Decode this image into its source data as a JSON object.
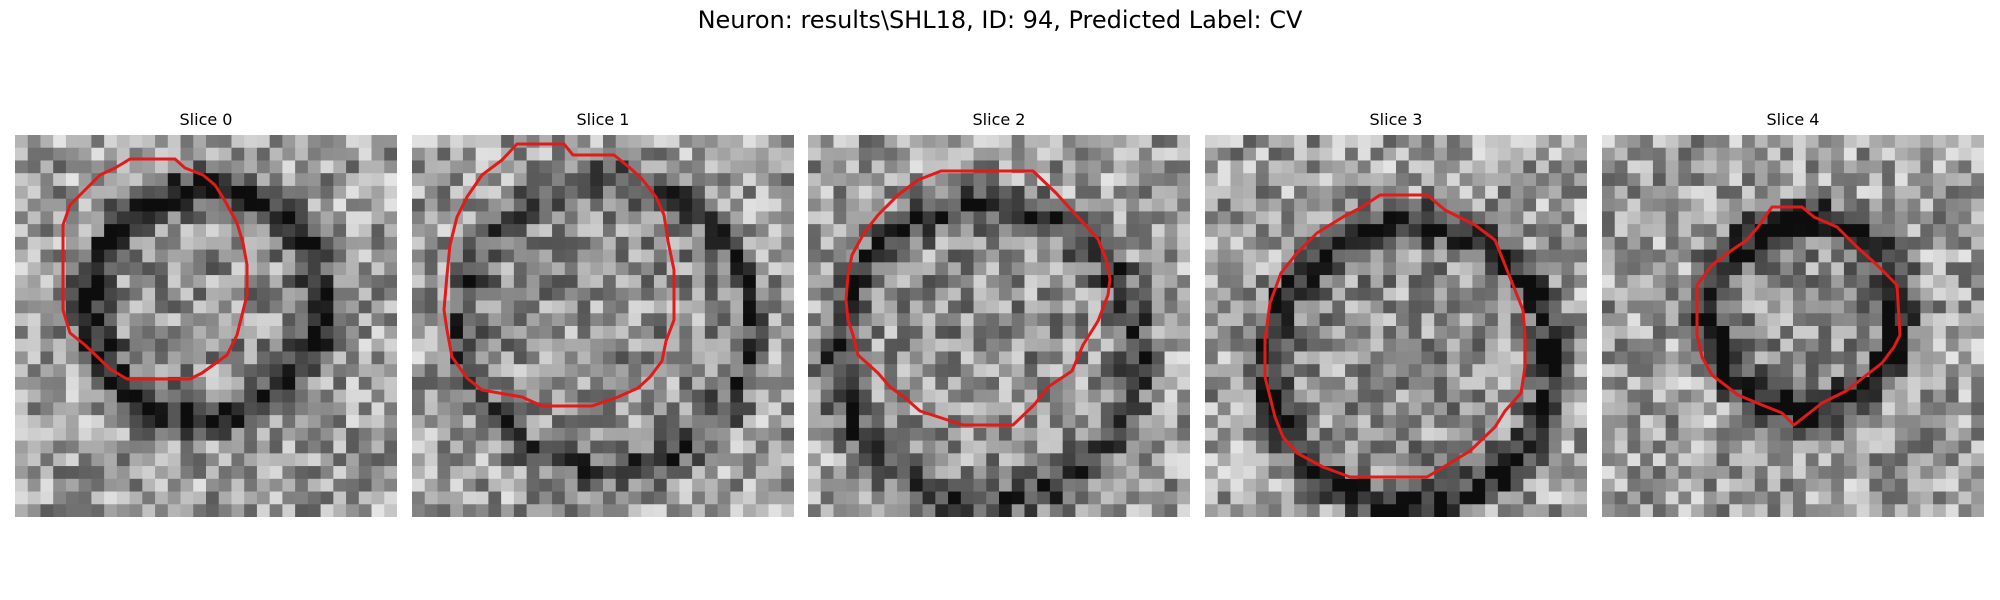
{
  "figure": {
    "title": "Neuron: results\\SHL18, ID: 94, Predicted Label: CV"
  },
  "style": {
    "contour_color": "#e11a1a",
    "colormap": "grayscale"
  },
  "panels": [
    {
      "title": "Slice 0",
      "ring_darkness": 0.55,
      "ring_center": [
        0.5,
        0.44
      ],
      "ring_radius": 0.3
    },
    {
      "title": "Slice 1",
      "ring_darkness": 0.35,
      "ring_center": [
        0.51,
        0.5
      ],
      "ring_radius": 0.38
    },
    {
      "title": "Slice 2",
      "ring_darkness": 0.45,
      "ring_center": [
        0.47,
        0.57
      ],
      "ring_radius": 0.39
    },
    {
      "title": "Slice 3",
      "ring_darkness": 0.55,
      "ring_center": [
        0.54,
        0.6
      ],
      "ring_radius": 0.37
    },
    {
      "title": "Slice 4",
      "ring_darkness": 0.6,
      "ring_center": [
        0.53,
        0.47
      ],
      "ring_radius": 0.25
    }
  ]
}
